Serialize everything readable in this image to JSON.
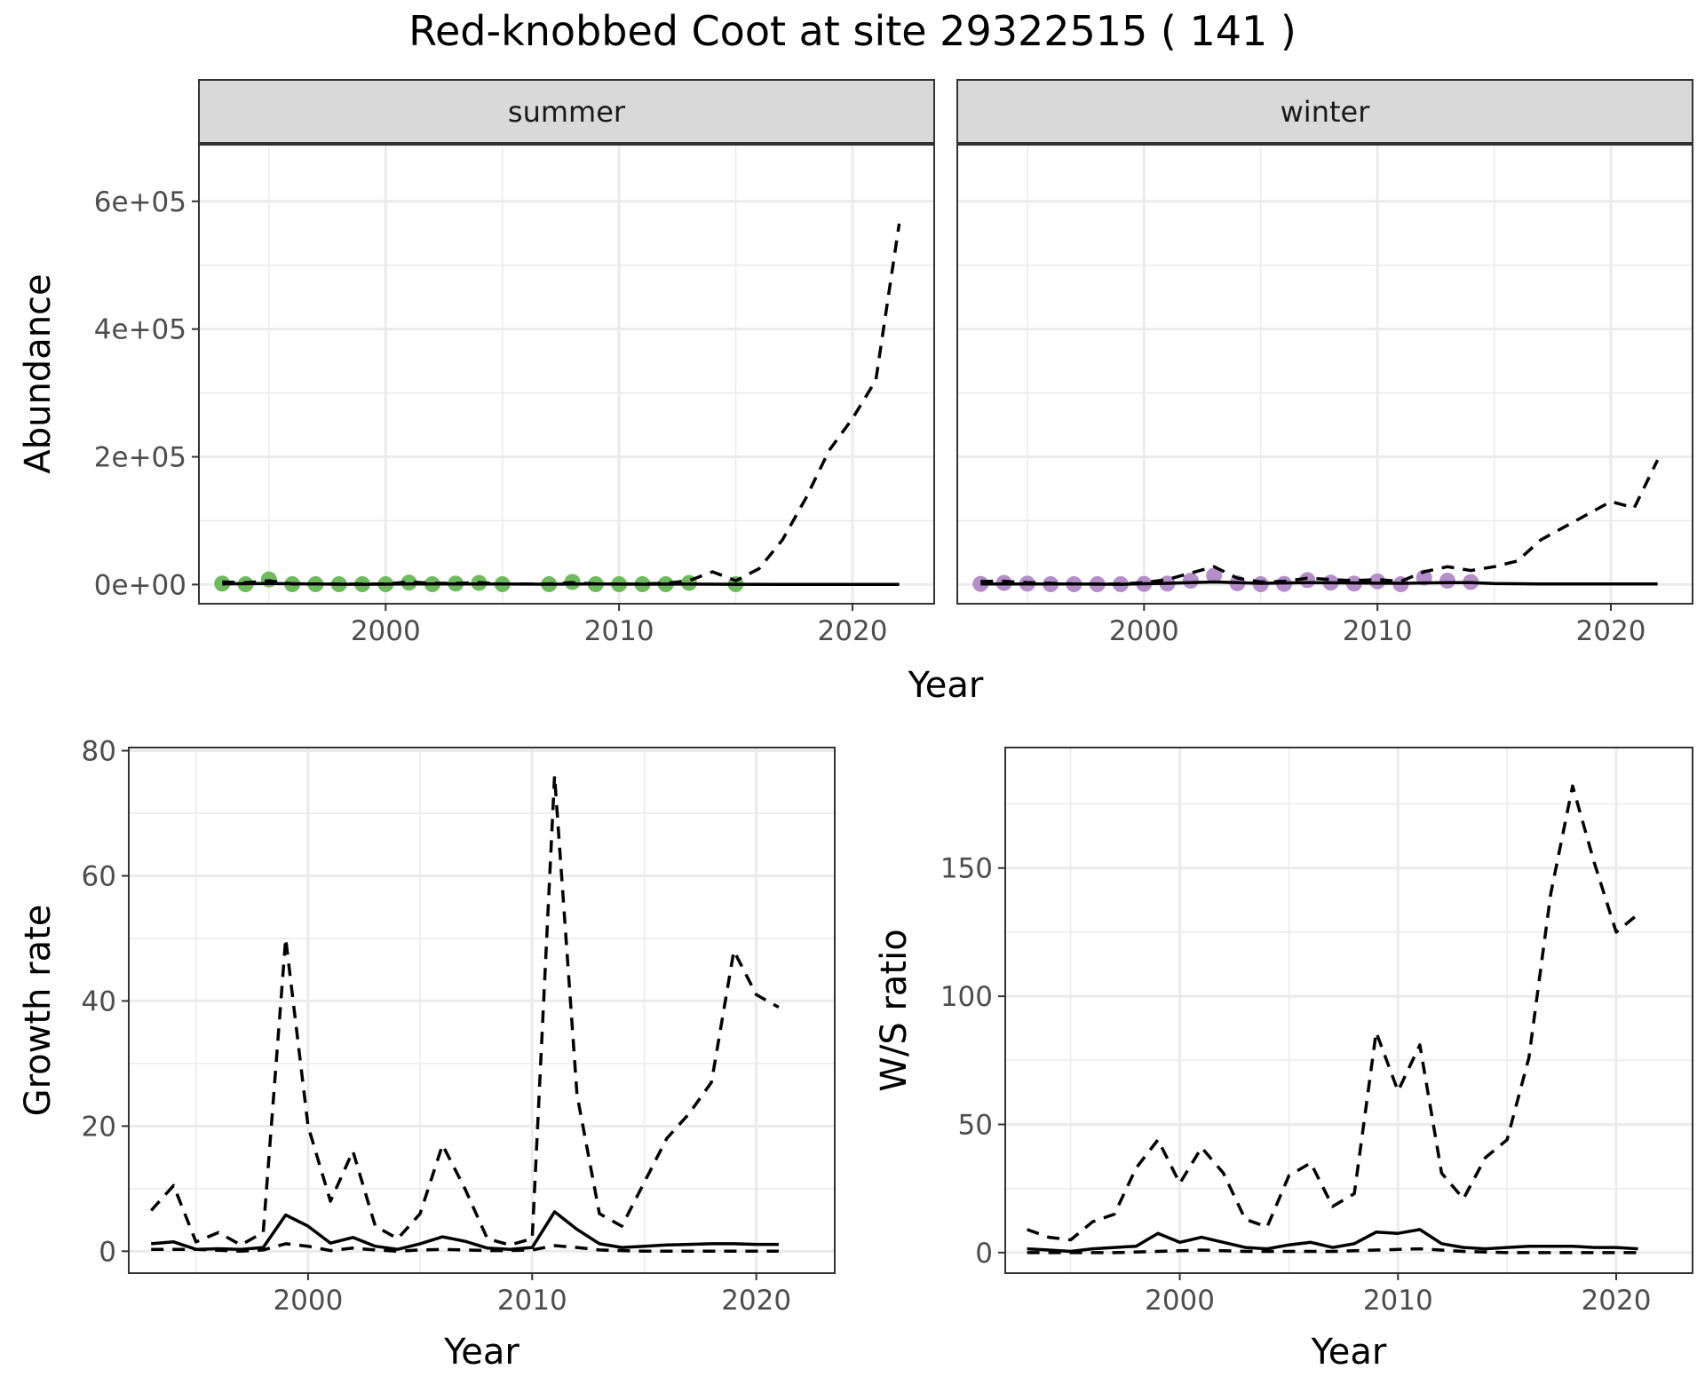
{
  "title": "Red-knobbed Coot at site 29322515 ( 141 )",
  "colors": {
    "summer_points": "#6dbb5c",
    "winter_points": "#b48dc9",
    "strip": "#d9d9d9"
  },
  "chart_data": [
    {
      "type": "line",
      "facet": "summer",
      "xlabel": "Year",
      "ylabel": "Abundance",
      "xlim": [
        1992,
        2023.5
      ],
      "ylim": [
        -30000,
        690000
      ],
      "x_ticks": [
        2000,
        2010,
        2020
      ],
      "x_tick_labels": [
        "2000",
        "2010",
        "2020"
      ],
      "y_ticks": [
        0,
        200000,
        400000,
        600000
      ],
      "y_tick_labels": [
        "0e+00",
        "2e+05",
        "4e+05",
        "6e+05"
      ],
      "grid": true,
      "series": [
        {
          "style": "points",
          "color": "#6dbb5c",
          "x": [
            1993,
            1994,
            1995,
            1996,
            1997,
            1998,
            1999,
            2000,
            2001,
            2002,
            2003,
            2004,
            2005,
            2007,
            2008,
            2009,
            2010,
            2011,
            2012,
            2013,
            2015
          ],
          "y": [
            1500,
            500,
            8000,
            500,
            500,
            500,
            500,
            500,
            3000,
            500,
            1500,
            2500,
            500,
            500,
            4000,
            500,
            500,
            500,
            500,
            2500,
            500
          ]
        },
        {
          "style": "solid",
          "x": [
            1993,
            1995,
            1997,
            1999,
            2001,
            2003,
            2005,
            2007,
            2009,
            2011,
            2013,
            2015,
            2017,
            2019,
            2021,
            2022
          ],
          "y": [
            1000,
            1500,
            800,
            500,
            800,
            1000,
            800,
            600,
            800,
            600,
            700,
            500,
            300,
            200,
            200,
            200
          ]
        },
        {
          "style": "dashed",
          "x": [
            1993,
            1994,
            1995,
            1996,
            1997,
            1998,
            1999,
            2000,
            2001,
            2002,
            2003,
            2004,
            2005,
            2006,
            2007,
            2008,
            2009,
            2010,
            2011,
            2012,
            2013,
            2014,
            2015,
            2016,
            2017,
            2018,
            2019,
            2020,
            2021,
            2022
          ],
          "y": [
            4000,
            3000,
            6000,
            1000,
            1000,
            1000,
            1000,
            1000,
            4000,
            2000,
            2000,
            3000,
            1000,
            1000,
            1000,
            3000,
            1000,
            1000,
            1000,
            2000,
            6000,
            20000,
            6000,
            25000,
            70000,
            135000,
            210000,
            260000,
            320000,
            565000
          ]
        }
      ]
    },
    {
      "type": "line",
      "facet": "winter",
      "xlabel": "Year",
      "ylabel": "Abundance",
      "xlim": [
        1992,
        2023.5
      ],
      "ylim": [
        -30000,
        690000
      ],
      "x_ticks": [
        2000,
        2010,
        2020
      ],
      "x_tick_labels": [
        "2000",
        "2010",
        "2020"
      ],
      "y_ticks": [
        0,
        200000,
        400000,
        600000
      ],
      "grid": true,
      "series": [
        {
          "style": "points",
          "color": "#b48dc9",
          "x": [
            1993,
            1994,
            1995,
            1996,
            1997,
            1998,
            1999,
            2000,
            2001,
            2002,
            2003,
            2004,
            2005,
            2006,
            2007,
            2008,
            2009,
            2010,
            2011,
            2012,
            2013,
            2014
          ],
          "y": [
            1000,
            2500,
            1500,
            500,
            500,
            500,
            500,
            1000,
            1500,
            6000,
            14000,
            2000,
            500,
            1000,
            7000,
            3000,
            1500,
            5000,
            500,
            11000,
            6000,
            4000
          ]
        },
        {
          "style": "solid",
          "x": [
            1993,
            1995,
            1997,
            1999,
            2001,
            2003,
            2005,
            2007,
            2009,
            2011,
            2013,
            2014,
            2015,
            2017,
            2019,
            2021,
            2022
          ],
          "y": [
            1000,
            1000,
            800,
            500,
            2000,
            4000,
            2000,
            3000,
            2500,
            2000,
            3000,
            3000,
            1500,
            1000,
            1000,
            1000,
            1000
          ]
        },
        {
          "style": "dashed",
          "x": [
            1993,
            1994,
            1995,
            1996,
            1997,
            1998,
            1999,
            2000,
            2001,
            2002,
            2003,
            2004,
            2005,
            2006,
            2007,
            2008,
            2009,
            2010,
            2011,
            2012,
            2013,
            2014,
            2015,
            2016,
            2017,
            2018,
            2019,
            2020,
            2021,
            2022
          ],
          "y": [
            5000,
            5000,
            3000,
            2000,
            1000,
            1000,
            1000,
            3000,
            8000,
            18000,
            28000,
            10000,
            4000,
            5000,
            10000,
            8000,
            6000,
            8000,
            5000,
            20000,
            28000,
            22000,
            28000,
            37000,
            70000,
            90000,
            110000,
            130000,
            120000,
            195000
          ]
        }
      ]
    },
    {
      "type": "line",
      "xlabel": "Year",
      "ylabel": "Growth rate",
      "xlim": [
        1992,
        2023.5
      ],
      "ylim": [
        -3.5,
        80.5
      ],
      "x_ticks": [
        2000,
        2010,
        2020
      ],
      "x_tick_labels": [
        "2000",
        "2010",
        "2020"
      ],
      "y_ticks": [
        0,
        20,
        40,
        60,
        80
      ],
      "y_tick_labels": [
        "0",
        "20",
        "40",
        "60",
        "80"
      ],
      "grid": true,
      "series": [
        {
          "style": "dashed",
          "x": [
            1993,
            1994,
            1995,
            1996,
            1997,
            1998,
            1999,
            2000,
            2001,
            2002,
            2003,
            2004,
            2005,
            2006,
            2007,
            2008,
            2009,
            2010,
            2011,
            2012,
            2013,
            2014,
            2015,
            2016,
            2017,
            2018,
            2019,
            2020,
            2021
          ],
          "y": [
            6.5,
            10.5,
            1.5,
            3,
            1,
            3,
            50,
            20,
            8,
            16,
            4,
            2,
            6,
            17,
            10,
            2,
            1,
            2,
            76,
            25,
            6,
            4,
            11,
            18,
            22,
            27,
            48,
            41,
            39
          ]
        },
        {
          "style": "solid",
          "x": [
            1993,
            1994,
            1995,
            1996,
            1997,
            1998,
            1999,
            2000,
            2001,
            2002,
            2003,
            2004,
            2005,
            2006,
            2007,
            2008,
            2009,
            2010,
            2011,
            2012,
            2013,
            2014,
            2015,
            2016,
            2017,
            2018,
            2019,
            2020,
            2021
          ],
          "y": [
            1.2,
            1.5,
            0.3,
            0.4,
            0.3,
            0.6,
            5.8,
            4,
            1.3,
            2.2,
            0.8,
            0.3,
            1.2,
            2.3,
            1.6,
            0.5,
            0.3,
            0.6,
            6.3,
            3.5,
            1.2,
            0.6,
            0.8,
            1,
            1.1,
            1.2,
            1.2,
            1.1,
            1.1
          ]
        },
        {
          "style": "dashed",
          "x": [
            1993,
            1995,
            1997,
            1998,
            1999,
            2000,
            2001,
            2002,
            2003,
            2004,
            2005,
            2006,
            2007,
            2008,
            2009,
            2010,
            2011,
            2012,
            2013,
            2014,
            2015,
            2017,
            2019,
            2021
          ],
          "y": [
            0.3,
            0.3,
            0,
            0.2,
            1.2,
            0.8,
            0.1,
            0.5,
            0.2,
            0,
            0.2,
            0.3,
            0.2,
            0.1,
            0.1,
            0.2,
            0.9,
            0.6,
            0.2,
            0.1,
            0,
            0,
            0,
            0
          ]
        }
      ]
    },
    {
      "type": "line",
      "xlabel": "Year",
      "ylabel": "W/S ratio",
      "xlim": [
        1992,
        2023.5
      ],
      "ylim": [
        -8,
        197
      ],
      "x_ticks": [
        2000,
        2010,
        2020
      ],
      "x_tick_labels": [
        "2000",
        "2010",
        "2020"
      ],
      "y_ticks": [
        0,
        50,
        100,
        150
      ],
      "y_tick_labels": [
        "0",
        "50",
        "100",
        "150"
      ],
      "grid": true,
      "series": [
        {
          "style": "dashed",
          "x": [
            1993,
            1994,
            1995,
            1996,
            1997,
            1998,
            1999,
            2000,
            2001,
            2002,
            2003,
            2004,
            2005,
            2006,
            2007,
            2008,
            2009,
            2010,
            2011,
            2012,
            2013,
            2014,
            2015,
            2016,
            2017,
            2018,
            2019,
            2020,
            2021
          ],
          "y": [
            9,
            6,
            5,
            12,
            15,
            33,
            44,
            27,
            41,
            31,
            13,
            10,
            30,
            35,
            18,
            23,
            86,
            63,
            81,
            31,
            21,
            37,
            44,
            76,
            140,
            182,
            152,
            125,
            132
          ]
        },
        {
          "style": "solid",
          "x": [
            1993,
            1994,
            1995,
            1996,
            1997,
            1998,
            1999,
            2000,
            2001,
            2002,
            2003,
            2004,
            2005,
            2006,
            2007,
            2008,
            2009,
            2010,
            2011,
            2012,
            2013,
            2014,
            2015,
            2016,
            2017,
            2018,
            2019,
            2020,
            2021
          ],
          "y": [
            1.5,
            1,
            0.5,
            1.5,
            2,
            2.5,
            7.5,
            4,
            6,
            4,
            2,
            1.5,
            3,
            4,
            2,
            3.5,
            8,
            7.5,
            9,
            3.5,
            2,
            1.5,
            2,
            2.5,
            2.5,
            2.5,
            2,
            2,
            1.5
          ]
        },
        {
          "style": "dashed",
          "x": [
            1993,
            1995,
            1997,
            1999,
            2001,
            2003,
            2005,
            2007,
            2009,
            2011,
            2013,
            2015,
            2017,
            2019,
            2021
          ],
          "y": [
            0,
            0,
            0,
            0.5,
            1,
            0.5,
            0.5,
            0.5,
            1,
            1.5,
            0.5,
            0,
            0,
            0,
            0
          ]
        }
      ]
    }
  ]
}
